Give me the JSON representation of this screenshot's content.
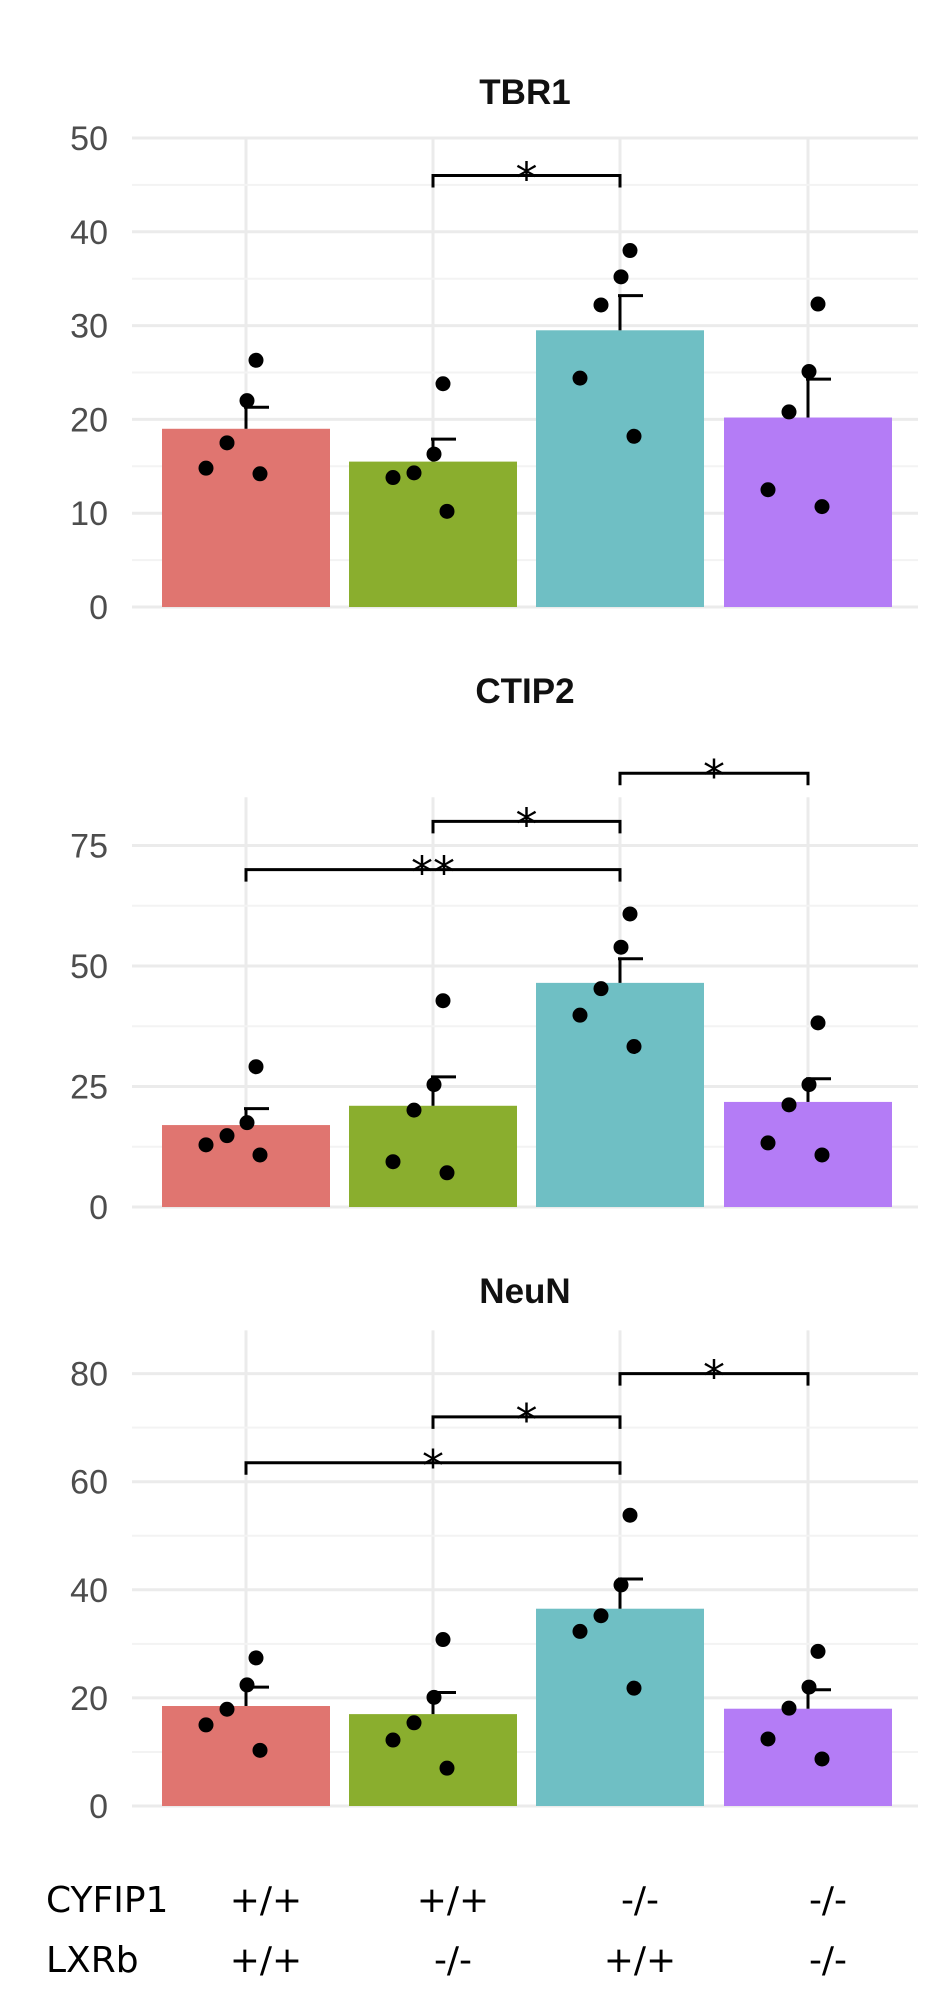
{
  "chart_data": [
    {
      "type": "bar",
      "title": "TBR1",
      "categories": [
        "CYFIP1 +/+ LXRb +/+",
        "CYFIP1 +/+ LXRb -/-",
        "CYFIP1 -/- LXRb +/+",
        "CYFIP1 -/- LXRb -/-"
      ],
      "values": [
        19,
        15.5,
        29.5,
        20.2
      ],
      "errors": [
        2.3,
        2.4,
        3.7,
        4.1
      ],
      "points": [
        [
          26.3,
          22,
          17.5,
          14.8,
          14.2
        ],
        [
          23.8,
          16.3,
          14.3,
          13.8,
          10.2
        ],
        [
          38,
          35.2,
          32.2,
          24.4,
          18.2
        ],
        [
          32.3,
          25.1,
          20.8,
          12.5,
          10.7
        ]
      ],
      "ylim": [
        0,
        50
      ],
      "yticks": [
        "0",
        "10",
        "20",
        "30",
        "40",
        "50"
      ],
      "significance": [
        {
          "from": 1,
          "to": 2,
          "y": 46,
          "label": "*"
        }
      ]
    },
    {
      "type": "bar",
      "title": "CTIP2",
      "categories": [
        "CYFIP1 +/+ LXRb +/+",
        "CYFIP1 +/+ LXRb -/-",
        "CYFIP1 -/- LXRb +/+",
        "CYFIP1 -/- LXRb -/-"
      ],
      "values": [
        17,
        21,
        46.5,
        21.8
      ],
      "errors": [
        3.4,
        6,
        5,
        4.8
      ],
      "points": [
        [
          29.1,
          17.5,
          14.8,
          12.9,
          10.8
        ],
        [
          42.8,
          25.4,
          20.1,
          9.4,
          7.1
        ],
        [
          60.8,
          53.9,
          45.3,
          39.8,
          33.3
        ],
        [
          38.2,
          25.4,
          21.2,
          13.3,
          10.8
        ]
      ],
      "ylim": [
        0,
        85
      ],
      "yticks": [
        "0",
        "25",
        "50",
        "75"
      ],
      "significance": [
        {
          "from": 2,
          "to": 3,
          "y": 90,
          "label": "*"
        },
        {
          "from": 1,
          "to": 2,
          "y": 80,
          "label": "*"
        },
        {
          "from": 0,
          "to": 2,
          "y": 70,
          "label": "**"
        }
      ]
    },
    {
      "type": "bar",
      "title": "NeuN",
      "categories": [
        "CYFIP1 +/+ LXRb +/+",
        "CYFIP1 +/+ LXRb -/-",
        "CYFIP1 -/- LXRb +/+",
        "CYFIP1 -/- LXRb -/-"
      ],
      "values": [
        18.5,
        17,
        36.5,
        18
      ],
      "errors": [
        3.5,
        4,
        5.5,
        3.5
      ],
      "points": [
        [
          27.4,
          22.4,
          17.9,
          15,
          10.3
        ],
        [
          30.8,
          20.1,
          15.4,
          12.2,
          7
        ],
        [
          53.8,
          40.9,
          35.2,
          32.3,
          21.8
        ],
        [
          28.6,
          22,
          18.1,
          12.4,
          8.7
        ]
      ],
      "ylim": [
        0,
        88
      ],
      "yticks": [
        "0",
        "20",
        "40",
        "60",
        "80"
      ],
      "significance": [
        {
          "from": 2,
          "to": 3,
          "y": 80,
          "label": "*"
        },
        {
          "from": 1,
          "to": 2,
          "y": 72,
          "label": "*"
        },
        {
          "from": 0,
          "to": 2,
          "y": 63.5,
          "label": "*"
        }
      ]
    }
  ],
  "legend_rows": [
    {
      "gene": "CYFIP1",
      "genotypes": [
        "+/+",
        "+/+",
        "-/-",
        "-/-"
      ]
    },
    {
      "gene": "LXRb",
      "genotypes": [
        "+/+",
        "-/-",
        "+/+",
        "-/-"
      ]
    }
  ],
  "colors": [
    "#E07570",
    "#8AAE2E",
    "#6FBFC4",
    "#B47CF6"
  ]
}
